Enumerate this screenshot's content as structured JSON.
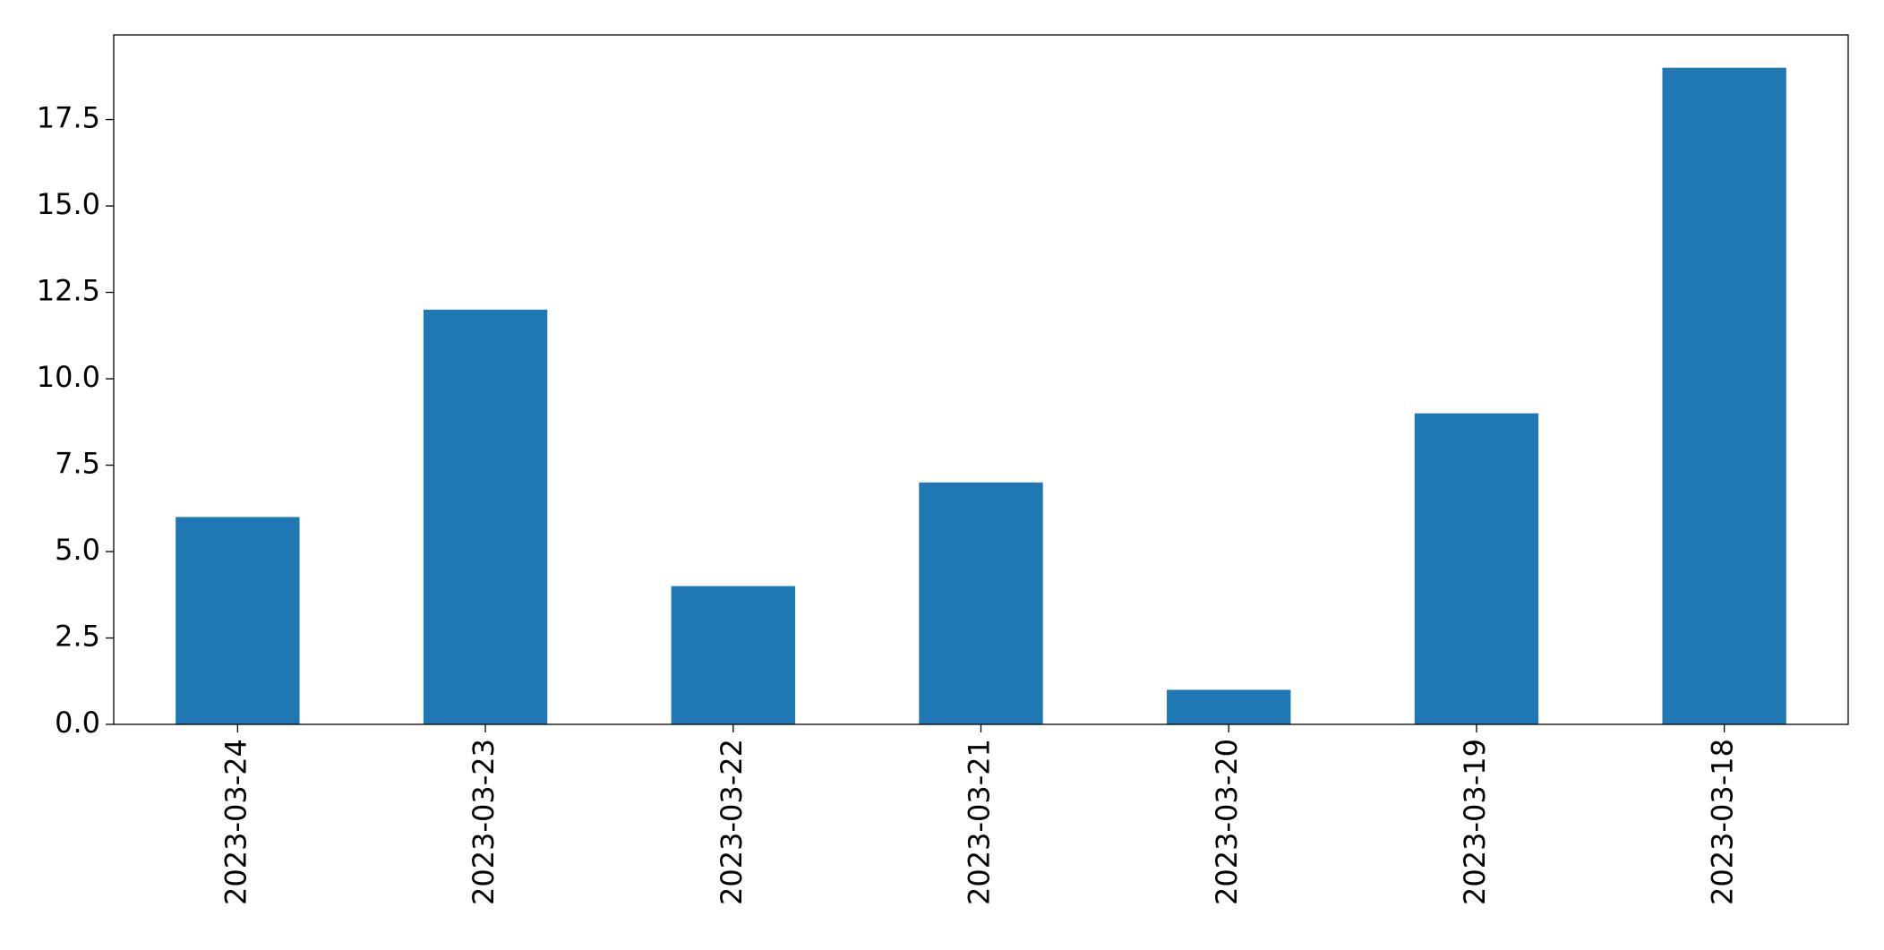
{
  "chart_data": {
    "type": "bar",
    "categories": [
      "2023-03-24",
      "2023-03-23",
      "2023-03-22",
      "2023-03-21",
      "2023-03-20",
      "2023-03-19",
      "2023-03-18"
    ],
    "values": [
      6,
      12,
      4,
      7,
      1,
      9,
      19
    ],
    "color": "#1f77b4",
    "ylim": [
      0,
      19.95
    ],
    "yticks": [
      {
        "value": 0,
        "label": "0.0"
      },
      2.5,
      {
        "value": 5,
        "label": "5.0"
      },
      7.5,
      {
        "value": 10,
        "label": "10.0"
      },
      12.5,
      {
        "value": 15,
        "label": "15.0"
      },
      17.5
    ],
    "grid": false
  }
}
